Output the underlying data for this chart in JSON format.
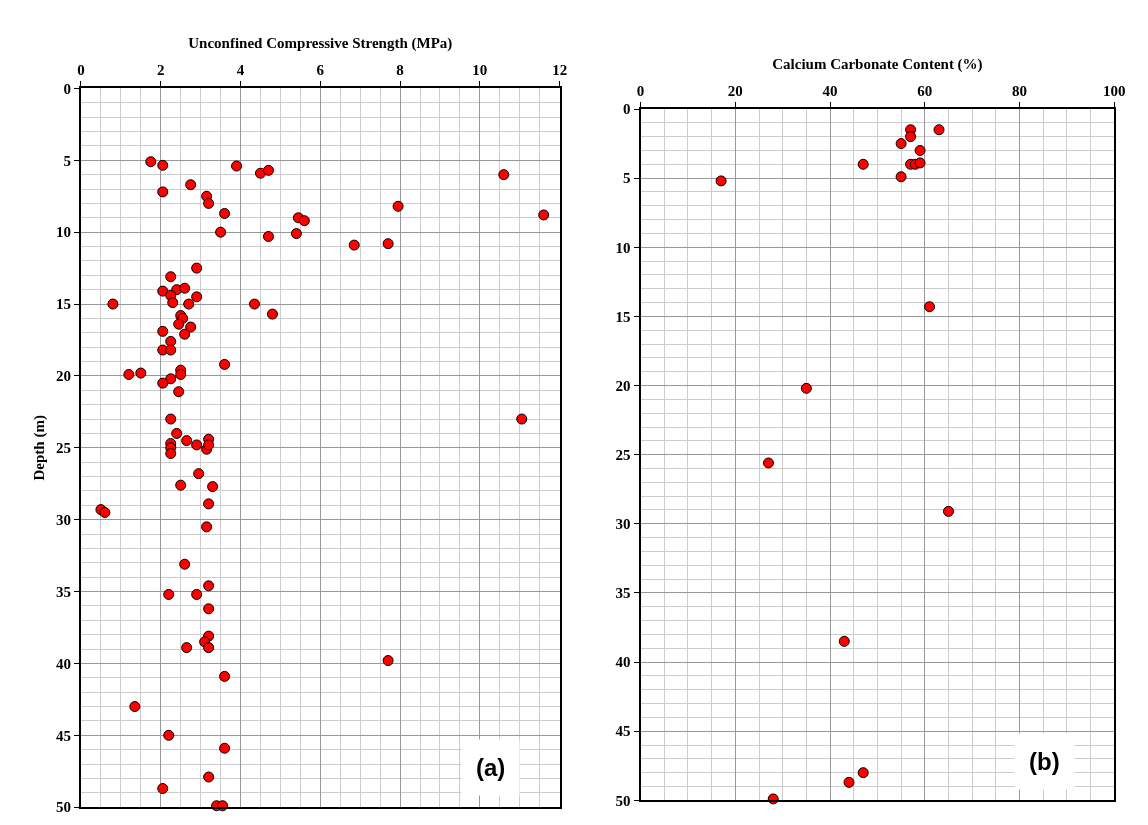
{
  "chart_data": [
    {
      "type": "scatter",
      "xlabel": "Unconfined Compressive Strength (MPa)",
      "ylabel": "Depth (m)",
      "annotations": [
        "(a)"
      ],
      "marker": "circle",
      "grid": true,
      "xlim": [
        0,
        12
      ],
      "xticks": [
        0,
        2,
        4,
        6,
        8,
        10,
        12
      ],
      "ylim": [
        50,
        0
      ],
      "yticks": [
        0,
        5,
        10,
        15,
        20,
        25,
        30,
        35,
        40,
        45,
        50
      ],
      "series": [
        {
          "color": "#ff0000",
          "x": [
            1.75,
            2.05,
            3.9,
            4.5,
            4.7,
            10.6,
            2.75,
            2.05,
            3.15,
            3.2,
            3.6,
            7.95,
            11.6,
            5.45,
            5.6,
            3.5,
            4.7,
            5.4,
            6.85,
            7.7,
            2.9,
            2.25,
            2.05,
            2.4,
            2.6,
            2.25,
            2.3,
            2.9,
            2.7,
            0.8,
            4.35,
            4.8,
            2.5,
            2.55,
            2.45,
            2.75,
            2.6,
            2.05,
            2.25,
            2.05,
            2.25,
            3.6,
            1.2,
            1.5,
            2.5,
            2.5,
            2.25,
            2.05,
            2.45,
            2.25,
            11.05,
            2.4,
            2.65,
            3.2,
            2.25,
            2.25,
            2.25,
            2.9,
            3.15,
            3.2,
            2.95,
            2.5,
            3.3,
            3.2,
            0.5,
            0.6,
            3.15,
            2.6,
            3.2,
            2.2,
            2.9,
            3.2,
            3.2,
            3.1,
            2.65,
            3.2,
            7.7,
            3.6,
            1.35,
            2.2,
            3.6,
            3.2,
            2.05,
            3.4,
            3.55
          ],
          "values": [
            5.1,
            5.35,
            5.4,
            5.9,
            5.7,
            6.0,
            6.7,
            7.2,
            7.5,
            8.0,
            8.7,
            8.2,
            8.8,
            9.0,
            9.2,
            10.0,
            10.3,
            10.1,
            10.9,
            10.8,
            12.5,
            13.1,
            14.1,
            14.0,
            13.9,
            14.4,
            14.9,
            14.5,
            15.0,
            15.0,
            15.0,
            15.7,
            15.8,
            16.0,
            16.4,
            16.6,
            17.1,
            16.9,
            17.6,
            18.2,
            18.2,
            19.2,
            19.9,
            19.8,
            19.6,
            19.9,
            20.2,
            20.5,
            21.1,
            23.0,
            23.0,
            24.0,
            24.5,
            24.4,
            24.7,
            25.0,
            25.4,
            24.8,
            25.1,
            24.8,
            26.8,
            27.6,
            27.7,
            28.9,
            29.3,
            29.5,
            30.5,
            33.1,
            34.6,
            35.2,
            35.2,
            36.2,
            38.1,
            38.5,
            38.9,
            38.9,
            39.8,
            40.9,
            43.0,
            45.0,
            45.9,
            47.9,
            48.7,
            49.9,
            49.9
          ]
        }
      ]
    },
    {
      "type": "scatter",
      "xlabel": "Calcium Carbonate Content (%)",
      "annotations": [
        "(b)"
      ],
      "marker": "circle",
      "grid": true,
      "xlim": [
        0,
        100
      ],
      "xticks": [
        0,
        20,
        40,
        60,
        80,
        100
      ],
      "ylim": [
        50,
        0
      ],
      "yticks": [
        0,
        5,
        10,
        15,
        20,
        25,
        30,
        35,
        40,
        45,
        50
      ],
      "series": [
        {
          "color": "#ff0000",
          "x": [
            57,
            63,
            57,
            55,
            59,
            47,
            57,
            58,
            59,
            55,
            17,
            61,
            35,
            27,
            65,
            43,
            47,
            44,
            28
          ],
          "values": [
            1.5,
            1.5,
            2.0,
            2.5,
            3.0,
            4.0,
            4.0,
            4.0,
            3.9,
            4.9,
            5.2,
            14.3,
            20.2,
            25.6,
            29.1,
            38.5,
            48.0,
            48.7,
            49.9
          ]
        }
      ]
    }
  ]
}
